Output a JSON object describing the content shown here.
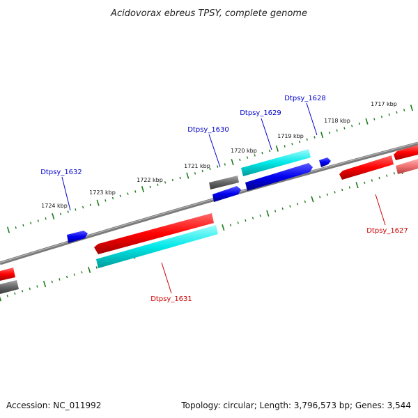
{
  "title": "Acidovorax ebreus TPSY, complete genome",
  "footer": {
    "accession": "Accession: NC_011992",
    "summary": "Topology: circular; Length: 3,796,573 bp; Genes: 3,544"
  },
  "colors": {
    "backbone": "#7a7a7a",
    "tick": "#1a7a1a",
    "forward_cds": "#ff0000",
    "reverse_cds": "#0000ee",
    "rna": "#00e0e0",
    "other": "#666666",
    "pseudo": "#f07070",
    "label_forward": "#0000cc",
    "label_reverse": "#cc0000"
  },
  "kbp_labels": [
    "1724 kbp",
    "1723 kbp",
    "1722 kbp",
    "1721 kbp",
    "1720 kbp",
    "1719 kbp",
    "1718 kbp",
    "1717 kbp"
  ],
  "gene_labels": [
    {
      "id": "lbl-1632",
      "text": "Dtpsy_1632",
      "strand": "forward"
    },
    {
      "id": "lbl-1630",
      "text": "Dtpsy_1630",
      "strand": "forward"
    },
    {
      "id": "lbl-1629",
      "text": "Dtpsy_1629",
      "strand": "forward"
    },
    {
      "id": "lbl-1628",
      "text": "Dtpsy_1628",
      "strand": "forward"
    },
    {
      "id": "lbl-1631",
      "text": "Dtpsy_1631",
      "strand": "reverse"
    },
    {
      "id": "lbl-1627",
      "text": "Dtpsy_1627",
      "strand": "reverse"
    }
  ]
}
